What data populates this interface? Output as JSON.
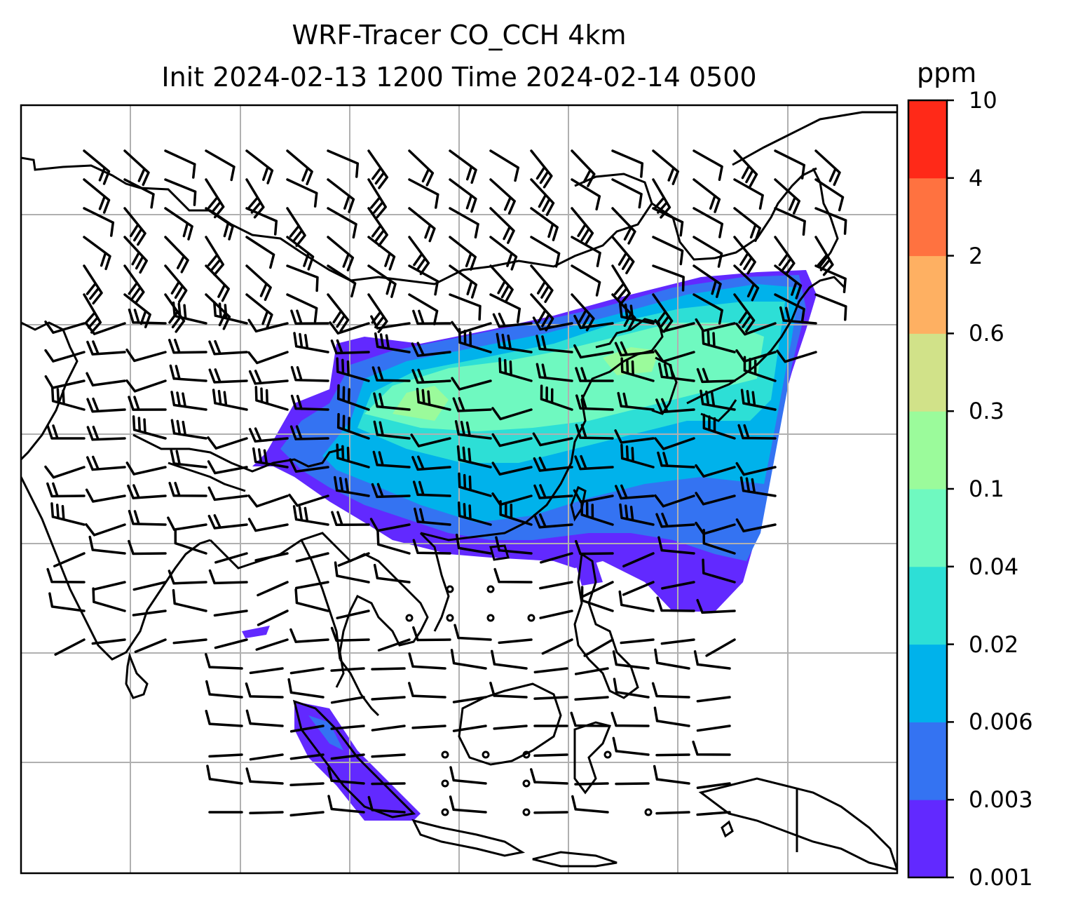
{
  "title": {
    "line1": "WRF-Tracer CO_CCH 4km",
    "line2": "Init 2024-02-13 1200 Time 2024-02-14 0500"
  },
  "colorbar": {
    "label": "ppm",
    "ticks": [
      "0.001",
      "0.003",
      "0.006",
      "0.02",
      "0.04",
      "0.1",
      "0.3",
      "0.6",
      "2",
      "4",
      "10"
    ],
    "colors": [
      "#6229ff",
      "#3473f2",
      "#00b2eb",
      "#2ddfd6",
      "#6ff9c0",
      "#9bfb9b",
      "#d1e289",
      "#feb062",
      "#ff7240",
      "#ff2918"
    ]
  },
  "map": {
    "gridlines": true,
    "coastline_color": "#000000",
    "grid_color": "#b0b0b0",
    "wind_barbs": true
  }
}
